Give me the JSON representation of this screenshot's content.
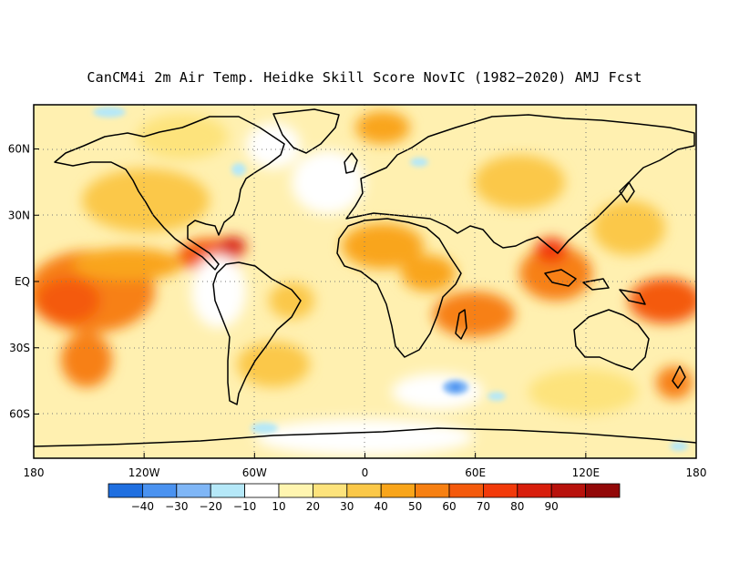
{
  "title": "CanCM4i 2m Air Temp. Heidke Skill Score NovIC (1982−2020) AMJ Fcst",
  "map": {
    "projection": "equirectangular",
    "lon_range": [
      -180,
      180
    ],
    "lat_range": [
      -80,
      80
    ],
    "gridlines": "dotted",
    "lat_ticks": [
      {
        "value": 60,
        "label": "60N"
      },
      {
        "value": 30,
        "label": "30N"
      },
      {
        "value": 0,
        "label": "EQ"
      },
      {
        "value": -30,
        "label": "30S"
      },
      {
        "value": -60,
        "label": "60S"
      }
    ],
    "lon_ticks": [
      {
        "value": -180,
        "label": "180"
      },
      {
        "value": -120,
        "label": "120W"
      },
      {
        "value": -60,
        "label": "60W"
      },
      {
        "value": 0,
        "label": "0"
      },
      {
        "value": 60,
        "label": "60E"
      },
      {
        "value": 120,
        "label": "120E"
      },
      {
        "value": 180,
        "label": "180"
      }
    ]
  },
  "colorbar": {
    "bins": [
      {
        "color": "#1f6fe0"
      },
      {
        "color": "#4a92f0"
      },
      {
        "color": "#7fb6f6"
      },
      {
        "color": "#b5e8f8"
      },
      {
        "color": "#ffffff"
      },
      {
        "color": "#fff5b0"
      },
      {
        "color": "#fde37c"
      },
      {
        "color": "#fbc848"
      },
      {
        "color": "#f9a51a"
      },
      {
        "color": "#f78012"
      },
      {
        "color": "#f45a0c"
      },
      {
        "color": "#f23a0a"
      },
      {
        "color": "#d81e0c"
      },
      {
        "color": "#b8120c"
      },
      {
        "color": "#920808"
      }
    ],
    "labels": [
      "−40",
      "−30",
      "−20",
      "−10",
      "10",
      "20",
      "30",
      "40",
      "50",
      "60",
      "70",
      "80",
      "90"
    ]
  }
}
